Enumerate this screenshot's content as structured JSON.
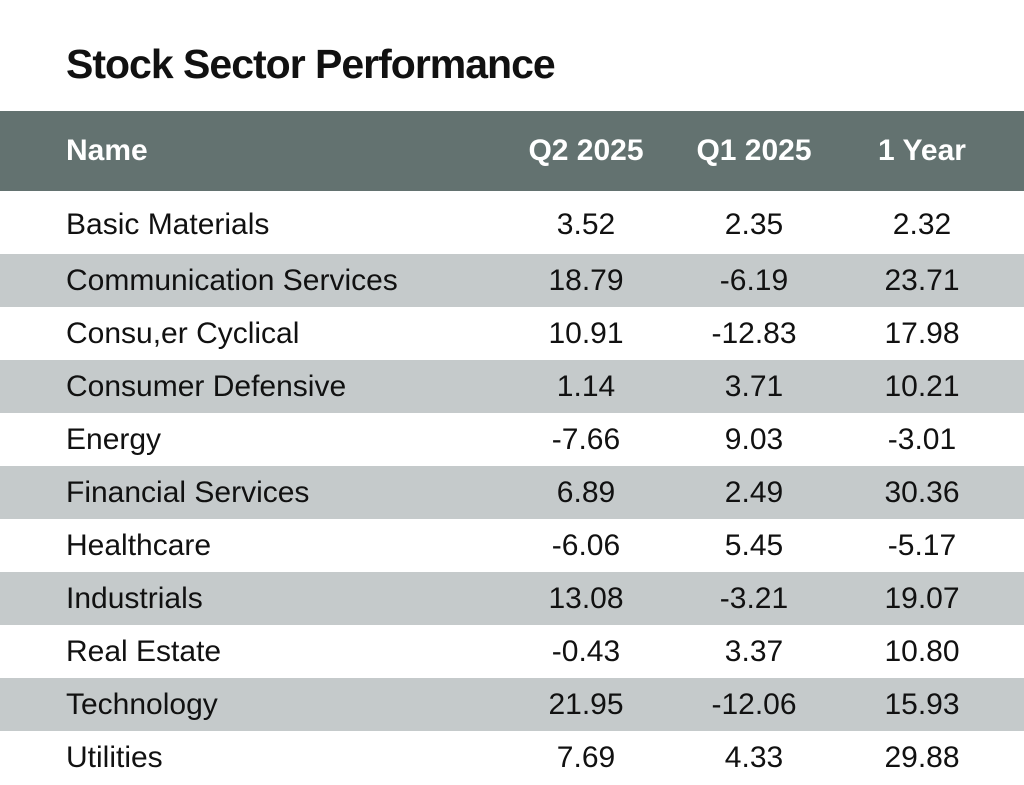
{
  "chart_data": {
    "type": "table",
    "title": "Stock Sector Performance",
    "columns": [
      "Name",
      "Q2 2025",
      "Q1 2025",
      "1 Year"
    ],
    "rows": [
      {
        "name": "Basic Materials",
        "q2_2025": "3.52",
        "q1_2025": "2.35",
        "one_year": "2.32"
      },
      {
        "name": "Communication Services",
        "q2_2025": "18.79",
        "q1_2025": "-6.19",
        "one_year": "23.71"
      },
      {
        "name": "Consu,er Cyclical",
        "q2_2025": "10.91",
        "q1_2025": "-12.83",
        "one_year": "17.98"
      },
      {
        "name": "Consumer Defensive",
        "q2_2025": "1.14",
        "q1_2025": "3.71",
        "one_year": "10.21"
      },
      {
        "name": "Energy",
        "q2_2025": "-7.66",
        "q1_2025": "9.03",
        "one_year": "-3.01"
      },
      {
        "name": "Financial Services",
        "q2_2025": "6.89",
        "q1_2025": "2.49",
        "one_year": "30.36"
      },
      {
        "name": "Healthcare",
        "q2_2025": "-6.06",
        "q1_2025": "5.45",
        "one_year": "-5.17"
      },
      {
        "name": "Industrials",
        "q2_2025": "13.08",
        "q1_2025": "-3.21",
        "one_year": "19.07"
      },
      {
        "name": "Real Estate",
        "q2_2025": "-0.43",
        "q1_2025": "3.37",
        "one_year": "10.80"
      },
      {
        "name": "Technology",
        "q2_2025": "21.95",
        "q1_2025": "-12.06",
        "one_year": "15.93"
      },
      {
        "name": "Utilities",
        "q2_2025": "7.69",
        "q1_2025": "4.33",
        "one_year": "29.88"
      }
    ],
    "colors": {
      "header_bg": "#637270",
      "header_text": "#ffffff",
      "stripe_bg": "#c5cacb",
      "text": "#111111"
    }
  }
}
